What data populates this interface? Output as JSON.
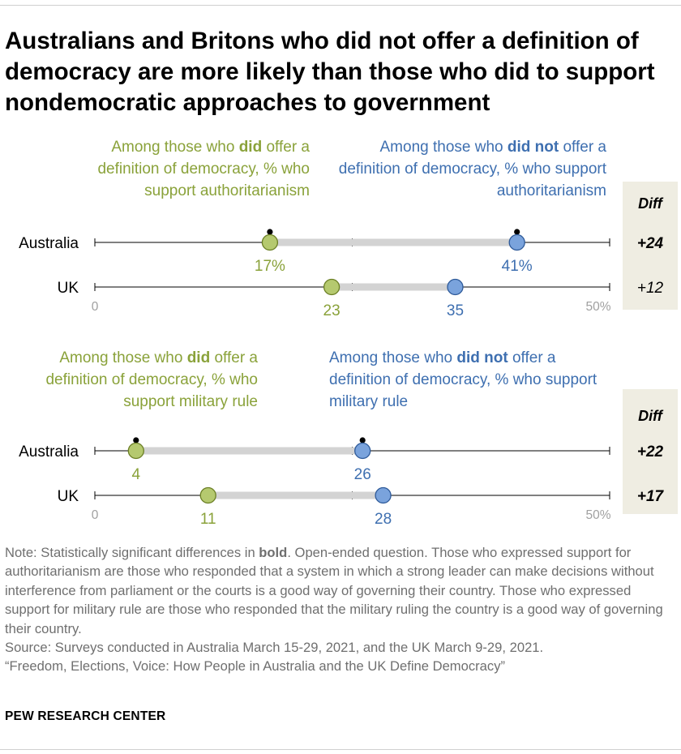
{
  "title": "Australians and Britons who did not offer a definition of democracy are more likely than those who did to support nondemocratic approaches to government",
  "diff_header": "Diff",
  "panels": [
    {
      "ann_did": {
        "pre": "Among those who ",
        "bold": "did",
        "post": " offer a definition of democracy, % who support authoritarianism"
      },
      "ann_didnot": {
        "pre": "Among those who ",
        "bold": "did not",
        "post": " offer a definition of democracy, % who support authoritarianism"
      }
    },
    {
      "ann_did": {
        "pre": "Among those who ",
        "bold": "did",
        "post": " offer a definition of democracy, % who support military rule"
      },
      "ann_didnot": {
        "pre": "Among those who ",
        "bold": "did not",
        "post": " offer a definition of democracy, % who support military rule"
      }
    }
  ],
  "chart_data": [
    {
      "type": "dot",
      "categories": [
        "Australia",
        "UK"
      ],
      "series": [
        {
          "name": "Among those who did offer a definition of democracy, % who support authoritarianism",
          "color": "#b5c96f",
          "values": [
            17,
            23
          ],
          "labels": [
            "17%",
            "23"
          ]
        },
        {
          "name": "Among those who did not offer a definition of democracy, % who support authoritarianism",
          "color": "#7aa3dc",
          "values": [
            41,
            35
          ],
          "labels": [
            "41%",
            "35"
          ]
        }
      ],
      "diff": [
        {
          "label": "+24",
          "bold": true
        },
        {
          "label": "+12",
          "bold": false
        }
      ],
      "xlim": [
        0,
        50
      ],
      "axis_labels": [
        "0",
        "50%"
      ]
    },
    {
      "type": "dot",
      "categories": [
        "Australia",
        "UK"
      ],
      "series": [
        {
          "name": "Among those who did offer a definition of democracy, % who support military rule",
          "color": "#b5c96f",
          "values": [
            4,
            11
          ],
          "labels": [
            "4",
            "11"
          ]
        },
        {
          "name": "Among those who did not offer a definition of democracy, % who support military rule",
          "color": "#7aa3dc",
          "values": [
            26,
            28
          ],
          "labels": [
            "26",
            "28"
          ]
        }
      ],
      "diff": [
        {
          "label": "+22",
          "bold": true
        },
        {
          "label": "+17",
          "bold": true
        }
      ],
      "xlim": [
        0,
        50
      ],
      "axis_labels": [
        "0",
        "50%"
      ]
    }
  ],
  "colors": {
    "green_dot": "#b5c96f",
    "green_text": "#8aa23a",
    "blue_dot": "#7aa3dc",
    "blue_text": "#3e6fb0",
    "range_bar": "#d3d3d3",
    "diff_background": "#efede2"
  },
  "note": {
    "prefix": "Note: Statistically significant differences in ",
    "bold": "bold",
    "rest": ". Open-ended question. Those who expressed support for authoritarianism are those who responded that a system in which a strong leader can make decisions without interference from parliament or the courts is a good way of governing their country. Those who expressed support for military rule are those who responded that the military ruling the country is a good way of governing their country.",
    "source": "Source: Surveys conducted in Australia March 15-29, 2021, and the UK March 9-29, 2021.",
    "report": "“Freedom, Elections, Voice: How People in Australia and the UK Define Democracy”"
  },
  "footer": "PEW RESEARCH CENTER"
}
